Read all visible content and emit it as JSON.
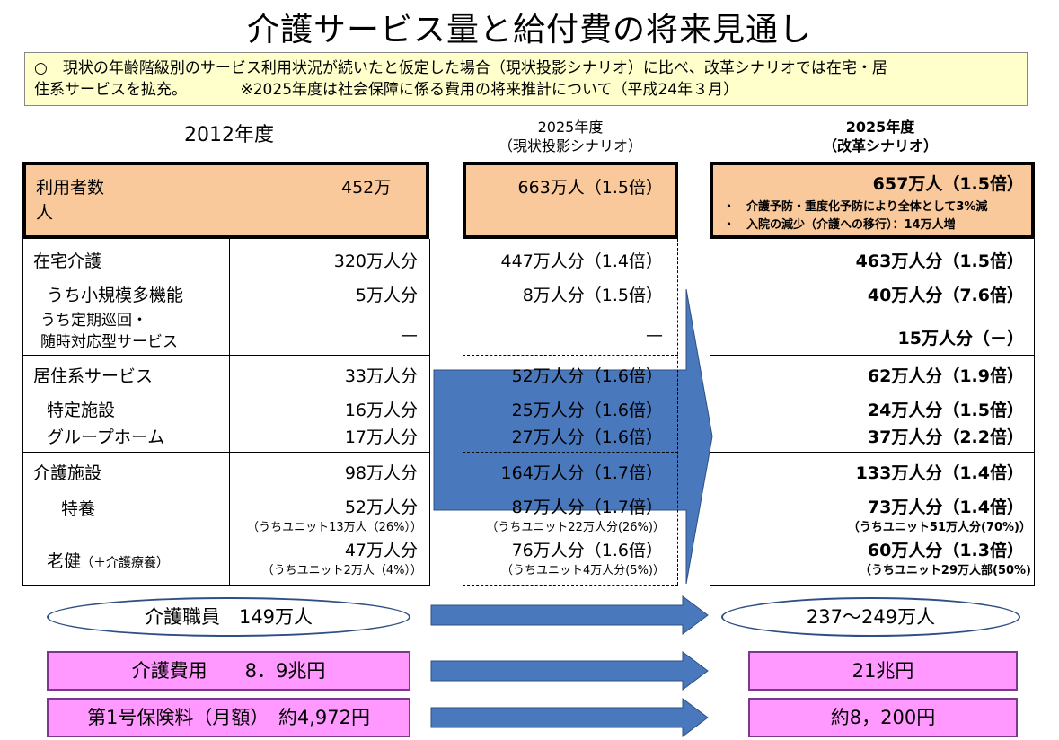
{
  "title": "介護サービス量と給付費の将来見通し",
  "note": {
    "line1": "○　現状の年齢階級別のサービス利用状況が続いたと仮定した場合（現状投影シナリオ）に比べ、改革シナリオでは在宅・居",
    "line2": "住系サービスを拡充。　　　　※2025年度は社会保障に係る費用の将来推計について（平成24年３月）"
  },
  "headers": {
    "col2012": "2012年度",
    "col2025a_l1": "2025年度",
    "col2025a_l2": "（現状投影シナリオ）",
    "col2025b_l1": "2025年度",
    "col2025b_l2": "（改革シナリオ）"
  },
  "users": {
    "label_l1": "利用者数",
    "label_l2": "人",
    "v2012": "452万",
    "v2025a": "663万人（1.5倍）",
    "v2025b": "657万人（1.5倍）",
    "bullet1": "・　介護予防・重度化予防により全体として3%減",
    "bullet2": "・　入院の減少（介護への移行）：14万人増"
  },
  "rows": {
    "zaitaku": {
      "label": "在宅介護",
      "v2012": "320万人分",
      "v2025a": "447万人分（1.4倍）",
      "v2025b": "463万人分（1.5倍）"
    },
    "shokibo": {
      "label": "うち小規模多機能",
      "v2012": "5万人分",
      "v2025a": "8万人分（1.5倍）",
      "v2025b": "40万人分（7.6倍）"
    },
    "teiki": {
      "label_l1": "うち定期巡回・",
      "label_l2": "随時対応型サービス",
      "v2012": "—",
      "v2025a": "—",
      "v2025b": "15万人分（－）"
    },
    "kyoju": {
      "label": "居住系サービス",
      "v2012": "33万人分",
      "v2025a": "52万人分（1.6倍）",
      "v2025b": "62万人分（1.9倍）"
    },
    "tokutei": {
      "label": "特定施設",
      "v2012": "16万人分",
      "v2025a": "25万人分（1.6倍）",
      "v2025b": "24万人分（1.5倍）"
    },
    "gh": {
      "label": "グループホーム",
      "v2012": "17万人分",
      "v2025a": "27万人分（1.6倍）",
      "v2025b": "37万人分（2.2倍）"
    },
    "shisetsu": {
      "label": "介護施設",
      "v2012": "98万人分",
      "v2025a": "164万人分（1.7倍）",
      "v2025b": "133万人分（1.4倍）"
    },
    "tokuyo": {
      "label": "特養",
      "v2012": "52万人分",
      "v2012_sub": "（うちユニット13万人（26%））",
      "v2025a": "87万人分（1.7倍）",
      "v2025a_sub": "（うちユニット22万人分(26%)）",
      "v2025b": "73万人分（1.4倍）",
      "v2025b_sub": "（うちユニット51万人分(70%)）"
    },
    "roken": {
      "label": "老健",
      "label_sub": "（＋介護療養）",
      "v2012": "47万人分",
      "v2012_sub": "（うちユニット2万人（4%））",
      "v2025a": "76万人分（1.6倍）",
      "v2025a_sub": "（うちユニット4万人分(5%)）",
      "v2025b": "60万人分（1.3倍）",
      "v2025b_sub": "（うちユニット29万人部(50%)"
    }
  },
  "bottom": {
    "staff_2012": "介護職員　149万人",
    "staff_2025": "237〜249万人",
    "cost_2012": "介護費用　　8．9兆円",
    "cost_2025": "21兆円",
    "premium_2012": "第1号保険料（月額）　約4,972円",
    "premium_2025": "約8，200円"
  },
  "colors": {
    "orange": "#f9c89b",
    "arrow": "#4a78bc",
    "pink": "#ff99ff",
    "note_bg": "#ffffcc"
  }
}
